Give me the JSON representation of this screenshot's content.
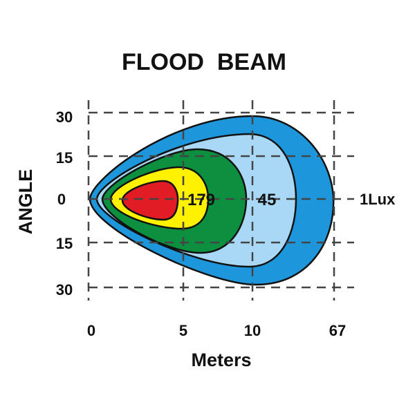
{
  "title": "FLOOD  BEAM",
  "y_axis_label": "ANGLE",
  "x_axis_label": "Meters",
  "y_ticks": [
    "30",
    "15",
    "0",
    "15",
    "30"
  ],
  "x_ticks": [
    "0",
    "5",
    "10",
    "67"
  ],
  "zone_labels": {
    "inner": "179",
    "middle": "45",
    "outer": "1Lux"
  },
  "colors": {
    "outer": "#1e96dc",
    "light": "#a8d8f5",
    "green": "#0c9040",
    "yellow": "#fff200",
    "red": "#e21c24",
    "grid": "#444444"
  }
}
